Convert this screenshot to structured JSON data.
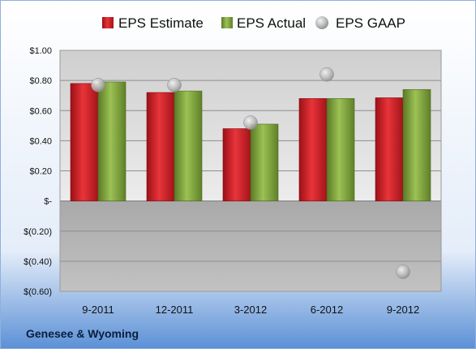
{
  "company": "Genesee & Wyoming",
  "colors": {
    "estimate": "#d91f26",
    "actual": "#82a83e",
    "gaap": "#b7b7b7"
  },
  "chart_data": {
    "type": "bar",
    "categories": [
      "9-2011",
      "12-2011",
      "3-2012",
      "6-2012",
      "9-2012"
    ],
    "series": [
      {
        "name": "EPS Estimate",
        "values": [
          0.78,
          0.72,
          0.48,
          0.68,
          0.685
        ]
      },
      {
        "name": "EPS Actual",
        "values": [
          0.79,
          0.73,
          0.51,
          0.68,
          0.74
        ]
      },
      {
        "name": "EPS GAAP",
        "values": [
          0.77,
          0.77,
          0.52,
          0.84,
          -0.47
        ]
      }
    ],
    "ylim": [
      -0.6,
      1.0
    ],
    "yticks": [
      1.0,
      0.8,
      0.6,
      0.4,
      0.2,
      0.0,
      -0.2,
      -0.4,
      -0.6
    ],
    "ytick_labels": [
      "$1.00",
      "$0.80",
      "$0.60",
      "$0.40",
      "$0.20",
      "$-",
      "$(0.20)",
      "$(0.40)",
      "$(0.60)"
    ],
    "legend_position": "top",
    "grid": true
  }
}
